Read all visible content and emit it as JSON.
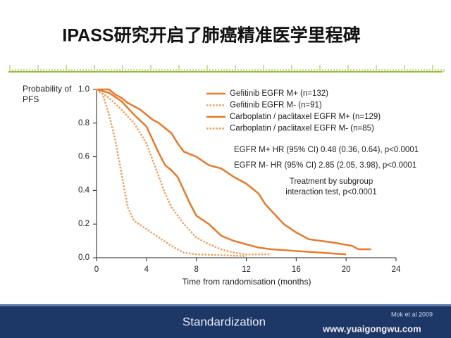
{
  "chart_data": {
    "type": "line",
    "step": true,
    "title": "IPASS研究开启了肺癌精准医学里程碑",
    "y_label": "Probability of PFS",
    "x_label": "Time from randomisation (months)",
    "xlim": [
      0,
      24
    ],
    "xticks": [
      0,
      4,
      8,
      12,
      16,
      20,
      24
    ],
    "ylim": [
      0,
      1
    ],
    "yticks": [
      {
        "value": 0,
        "label": "0.0"
      },
      {
        "value": 0.2,
        "label": "0.2"
      },
      {
        "value": 0.4,
        "label": "0.4"
      },
      {
        "value": 0.6,
        "label": "0.6"
      },
      {
        "value": 0.8,
        "label": "0.8"
      },
      {
        "value": 1,
        "label": "1.0"
      }
    ],
    "legend": "top-right",
    "series": [
      {
        "name": "Gefitinib EGFR M+ (n=132)",
        "color": "#e8792b",
        "line_style": "solid",
        "x": [
          0,
          1,
          1.5,
          2,
          2.5,
          3,
          3.5,
          4,
          4.5,
          5,
          5.5,
          6,
          6.5,
          7,
          8,
          9,
          10,
          11,
          12,
          13,
          13.5,
          14,
          15,
          16,
          17,
          18,
          19,
          20.5,
          21,
          22
        ],
        "values": [
          1,
          1,
          0.97,
          0.95,
          0.92,
          0.9,
          0.88,
          0.85,
          0.82,
          0.8,
          0.77,
          0.74,
          0.68,
          0.63,
          0.6,
          0.55,
          0.53,
          0.48,
          0.44,
          0.38,
          0.32,
          0.28,
          0.2,
          0.15,
          0.11,
          0.1,
          0.09,
          0.07,
          0.05,
          0.05
        ]
      },
      {
        "name": "Gefitinib EGFR M- (n=91)",
        "color": "#f0a060",
        "line_style": "dotted",
        "x": [
          0,
          0.5,
          1,
          1.5,
          2,
          2.5,
          3,
          4,
          5,
          6,
          7,
          8,
          12
        ],
        "values": [
          1,
          0.97,
          0.85,
          0.7,
          0.5,
          0.3,
          0.22,
          0.17,
          0.12,
          0.07,
          0.03,
          0.02,
          0.01
        ]
      },
      {
        "name": "Carboplatin / paclitaxel EGFR M+ (n=129)",
        "color": "#e8792b",
        "line_style": "solid",
        "x": [
          0,
          1,
          2,
          3,
          4,
          4.5,
          5,
          5.5,
          6,
          6.5,
          7,
          7.5,
          8,
          9,
          10,
          11,
          12,
          13,
          14,
          16,
          18,
          20
        ],
        "values": [
          1,
          0.98,
          0.93,
          0.85,
          0.78,
          0.7,
          0.62,
          0.55,
          0.52,
          0.48,
          0.4,
          0.32,
          0.25,
          0.2,
          0.13,
          0.1,
          0.08,
          0.06,
          0.05,
          0.04,
          0.03,
          0.02
        ]
      },
      {
        "name": "Carboplatin / paclitaxel EGFR M- (n=85)",
        "color": "#f0a060",
        "line_style": "dotted",
        "x": [
          0,
          1,
          2,
          3,
          4,
          5,
          5.5,
          6,
          6.5,
          7,
          8,
          9,
          10,
          11,
          12,
          14
        ],
        "values": [
          1,
          0.95,
          0.88,
          0.8,
          0.68,
          0.48,
          0.38,
          0.3,
          0.25,
          0.2,
          0.12,
          0.08,
          0.05,
          0.03,
          0.02,
          0.02
        ]
      }
    ],
    "annotations": [
      "EGFR M+ HR (95% CI) 0.48 (0.36, 0.64), p<0.0001",
      "EGFR M- HR (95% CI) 2.85 (2.05, 3.98), p<0.0001",
      "Treatment by subgroup",
      "interaction test, p<0.0001"
    ]
  },
  "footer": {
    "logo": "Standardization",
    "citation": "Mok et al 2009",
    "watermark": "www.yuaigongwu.com"
  }
}
